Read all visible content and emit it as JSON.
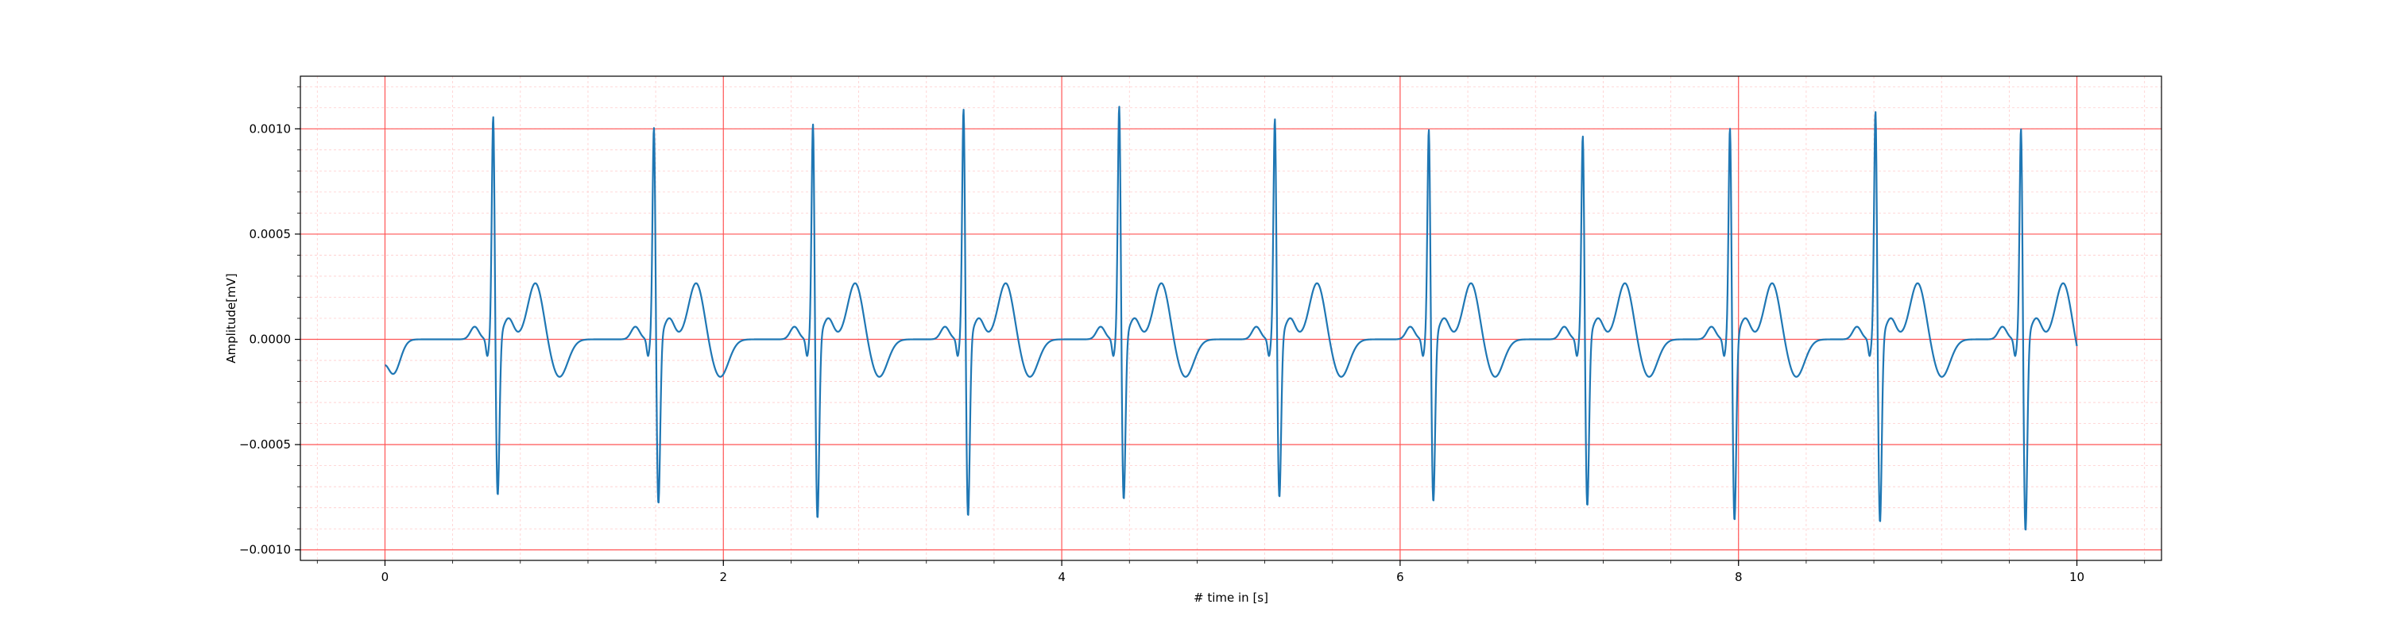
{
  "chart_data": {
    "type": "line",
    "xlabel": "# time in [s]",
    "ylabel": "Amplitude[mV]",
    "xlim": [
      -0.5,
      10.5
    ],
    "ylim": [
      -0.00105,
      0.00125
    ],
    "grid": {
      "major": true,
      "minor": true,
      "major_color": "#ff5555",
      "minor_color": "#ffcccc"
    },
    "x_ticks": [
      0,
      2,
      4,
      6,
      8,
      10
    ],
    "x_tick_labels": [
      "0",
      "2",
      "4",
      "6",
      "8",
      "10"
    ],
    "y_ticks": [
      0.001,
      0.0005,
      0.0,
      -0.0005,
      -0.001
    ],
    "y_tick_labels": [
      "0.0010",
      "0.0005",
      "0.0000",
      "−0.0005",
      "−0.0010"
    ],
    "series": [
      {
        "color": "#1f77b4",
        "beats": [
          {
            "t": 0.64,
            "r": 0.00109,
            "s": -0.00076
          },
          {
            "t": 1.59,
            "r": 0.00104,
            "s": -0.0008
          },
          {
            "t": 2.53,
            "r": 0.00106,
            "s": -0.00087
          },
          {
            "t": 3.42,
            "r": 0.00113,
            "s": -0.00086
          },
          {
            "t": 4.34,
            "r": 0.00114,
            "s": -0.00078
          },
          {
            "t": 5.26,
            "r": 0.00108,
            "s": -0.00077
          },
          {
            "t": 6.17,
            "r": 0.00103,
            "s": -0.00079
          },
          {
            "t": 7.08,
            "r": 0.001,
            "s": -0.00081
          },
          {
            "t": 7.95,
            "r": 0.00104,
            "s": -0.00088
          },
          {
            "t": 8.81,
            "r": 0.00112,
            "s": -0.00089
          },
          {
            "t": 9.67,
            "r": 0.00104,
            "s": -0.00093
          }
        ],
        "t_wave_amplitude": 0.00027,
        "baseline_dip": -0.00018,
        "start": [
          0.0,
          -5e-05
        ],
        "end": [
          10.0,
          3e-05
        ]
      }
    ]
  }
}
